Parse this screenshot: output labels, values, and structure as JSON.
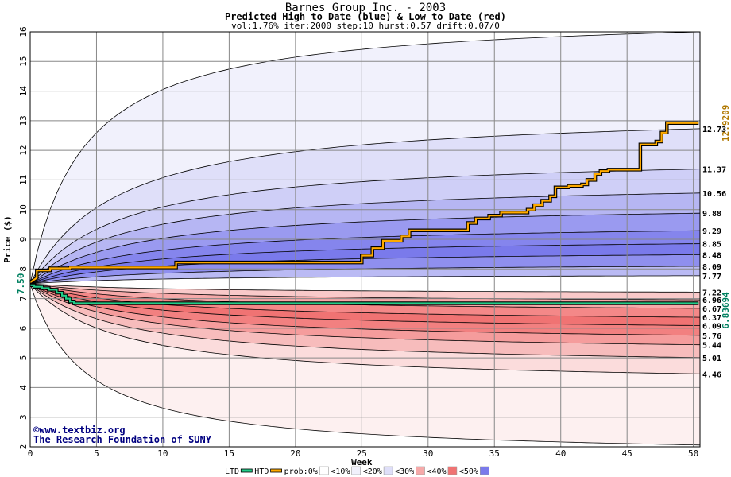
{
  "chart_data": {
    "type": "area",
    "title": "Barnes Group Inc. - 2003",
    "subtitle": "Predicted High to Date (blue) &  Low to Date (red)",
    "params": "vol:1.76% iter:2000 step:10 hurst:0.57 drift:0.07/0",
    "xlabel": "Week",
    "ylabel": "Price ($)",
    "xlim": [
      0,
      50.5
    ],
    "ylim": [
      2,
      16
    ],
    "x_ticks": [
      0,
      5,
      10,
      15,
      20,
      25,
      30,
      35,
      40,
      45,
      50
    ],
    "y_ticks": [
      2,
      3,
      4,
      5,
      6,
      7,
      8,
      9,
      10,
      11,
      12,
      13,
      14,
      15,
      16
    ],
    "grid": true,
    "start_price": 7.5,
    "start_label": "7.50",
    "high_end_label": "12.9209",
    "low_end_label": "6.83694",
    "high_bands": [
      {
        "label": "16.00",
        "end": 16.0,
        "end_visible": false,
        "half_x": 4.0
      },
      {
        "label": "12.73",
        "end": 12.73,
        "end_visible": true,
        "half_x": 6.5
      },
      {
        "label": "11.37",
        "end": 11.37,
        "end_visible": true,
        "half_x": 7.0
      },
      {
        "label": "10.56",
        "end": 10.56,
        "end_visible": true,
        "half_x": 7.5
      },
      {
        "label": "9.88",
        "end": 9.88,
        "end_visible": true,
        "half_x": 8.0
      },
      {
        "label": "9.29",
        "end": 9.29,
        "end_visible": true,
        "half_x": 8.5
      },
      {
        "label": "8.85",
        "end": 8.85,
        "end_visible": true,
        "half_x": 9.0
      },
      {
        "label": "8.48",
        "end": 8.48,
        "end_visible": true,
        "half_x": 9.5
      },
      {
        "label": "8.09",
        "end": 8.09,
        "end_visible": true,
        "half_x": 10.0
      },
      {
        "label": "7.77",
        "end": 7.77,
        "end_visible": true,
        "half_x": 10.5
      }
    ],
    "low_bands": [
      {
        "label": "7.22",
        "end": 7.22,
        "end_visible": true,
        "half_x": 10.5
      },
      {
        "label": "6.96",
        "end": 6.96,
        "end_visible": true,
        "half_x": 10.0
      },
      {
        "label": "6.67",
        "end": 6.67,
        "end_visible": true,
        "half_x": 9.5
      },
      {
        "label": "6.37",
        "end": 6.37,
        "end_visible": true,
        "half_x": 9.0
      },
      {
        "label": "6.09",
        "end": 6.09,
        "end_visible": true,
        "half_x": 8.5
      },
      {
        "label": "5.76",
        "end": 5.76,
        "end_visible": true,
        "half_x": 8.0
      },
      {
        "label": "5.44",
        "end": 5.44,
        "end_visible": true,
        "half_x": 7.5
      },
      {
        "label": "5.01",
        "end": 5.01,
        "end_visible": true,
        "half_x": 7.0
      },
      {
        "label": "4.46",
        "end": 4.46,
        "end_visible": true,
        "half_x": 6.5
      },
      {
        "label": "2.06",
        "end": 2.06,
        "end_visible": false,
        "half_x": 4.0
      }
    ],
    "band_fills_high": [
      "#f1f1fc",
      "#dfdff9",
      "#cfcff7",
      "#b6b6f3",
      "#9a9af0",
      "#8585ed",
      "#7a7aeb",
      "#8f8fee",
      "#babaf4"
    ],
    "band_fills_low": [
      "#f9c9c9",
      "#f6a9a9",
      "#f48888",
      "#f07373",
      "#f28080",
      "#f59c9c",
      "#f7bcbc",
      "#fbdcdc",
      "#fdf0f0"
    ],
    "htd_series": {
      "name": "HTD",
      "x": [
        0,
        0.5,
        0.5,
        1.5,
        1.5,
        3,
        3,
        11,
        11,
        25,
        25,
        25.8,
        25.8,
        26.6,
        26.6,
        28,
        28,
        28.6,
        28.6,
        33,
        33,
        33.6,
        33.6,
        34.6,
        34.6,
        35.5,
        35.5,
        37.5,
        37.5,
        38,
        38,
        38.6,
        38.6,
        39.2,
        39.2,
        39.6,
        39.6,
        40.6,
        40.6,
        41.6,
        41.6,
        42,
        42,
        42.6,
        42.6,
        43,
        43,
        43.6,
        43.6,
        46,
        46,
        47.2,
        47.2,
        47.6,
        47.6,
        48,
        48,
        50.4
      ],
      "y": [
        7.55,
        7.7,
        7.95,
        7.95,
        8.02,
        8.02,
        8.05,
        8.05,
        8.22,
        8.22,
        8.45,
        8.45,
        8.7,
        8.7,
        8.95,
        8.95,
        9.1,
        9.1,
        9.3,
        9.3,
        9.55,
        9.55,
        9.7,
        9.7,
        9.8,
        9.8,
        9.9,
        9.9,
        10.0,
        10.0,
        10.15,
        10.15,
        10.3,
        10.3,
        10.45,
        10.45,
        10.75,
        10.75,
        10.8,
        10.8,
        10.85,
        10.85,
        11.0,
        11.0,
        11.2,
        11.2,
        11.3,
        11.3,
        11.35,
        11.35,
        12.2,
        12.2,
        12.3,
        12.3,
        12.6,
        12.6,
        12.92,
        12.92
      ]
    },
    "ltd_series": {
      "name": "LTD",
      "x": [
        0,
        0.3,
        0.3,
        0.9,
        0.9,
        1.4,
        1.4,
        2,
        2,
        2.4,
        2.4,
        2.7,
        2.7,
        3,
        3,
        3.3,
        3.3,
        50.4
      ],
      "y": [
        7.45,
        7.45,
        7.4,
        7.4,
        7.35,
        7.35,
        7.3,
        7.3,
        7.2,
        7.2,
        7.1,
        7.1,
        7.0,
        7.0,
        6.9,
        6.9,
        6.84,
        6.84
      ]
    },
    "legend_items": [
      {
        "label": "LTD",
        "color": "#22cc88"
      },
      {
        "label": "HTD",
        "color": "#ffaa00"
      },
      {
        "label": "prob:0%",
        "color": "#ffffff"
      },
      {
        "label": "<10%",
        "color": "#f1f1fc"
      },
      {
        "label": "<20%",
        "color": "#dfdff9"
      },
      {
        "label": "<30%",
        "color": "#f6a9a9"
      },
      {
        "label": "<40%",
        "color": "#f07373"
      },
      {
        "label": "<50%",
        "color": "#7a7aeb"
      }
    ]
  },
  "credits": {
    "line1": "www.textbiz.org",
    "line2": "The Research Foundation of SUNY",
    "copyright_symbol": "©"
  }
}
